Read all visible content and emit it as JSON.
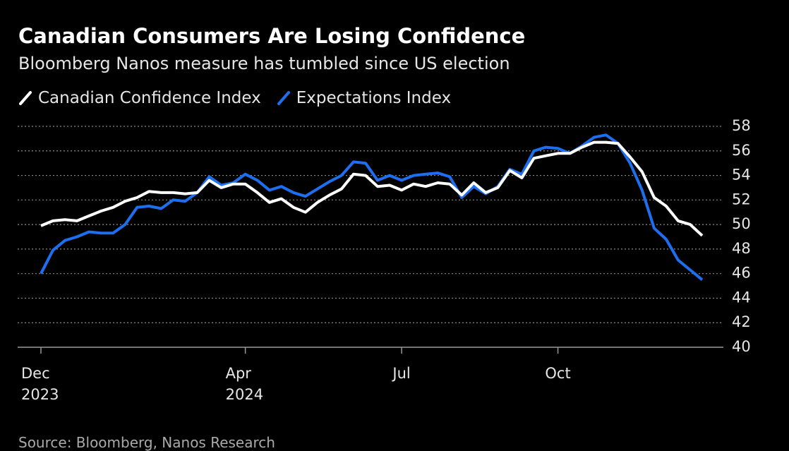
{
  "chart_data": {
    "type": "line",
    "title": "Canadian Consumers Are Losing Confidence",
    "subtitle": "Bloomberg Nanos measure has tumbled since US election",
    "source": "Source: Bloomberg, Nanos Research",
    "categories": [
      "Dec\n2023",
      null,
      null,
      null,
      null,
      null,
      null,
      null,
      null,
      null,
      null,
      null,
      null,
      null,
      null,
      null,
      null,
      "Apr\n2024",
      null,
      null,
      null,
      null,
      null,
      null,
      null,
      null,
      null,
      null,
      null,
      null,
      "Jul",
      null,
      null,
      null,
      null,
      null,
      null,
      null,
      null,
      null,
      null,
      null,
      null,
      "Oct",
      null,
      null,
      null,
      null,
      null,
      null,
      null,
      null,
      null,
      null,
      null,
      null
    ],
    "series": [
      {
        "name": "Canadian Confidence Index",
        "color": "#ffffff",
        "values": [
          49.9,
          50.3,
          50.4,
          50.3,
          50.7,
          51.1,
          51.4,
          51.9,
          52.2,
          52.7,
          52.6,
          52.6,
          52.5,
          52.6,
          53.6,
          53.0,
          53.3,
          53.3,
          52.6,
          51.8,
          52.1,
          51.4,
          51.0,
          51.8,
          52.4,
          52.9,
          54.1,
          54.0,
          53.1,
          53.2,
          52.8,
          53.3,
          53.1,
          53.4,
          53.3,
          52.4,
          53.4,
          52.6,
          53.0,
          54.4,
          53.8,
          55.4,
          55.6,
          55.8,
          55.8,
          56.3,
          56.7,
          56.7,
          56.6,
          55.5,
          54.3,
          52.2,
          51.5,
          50.3,
          50.0,
          49.1
        ]
      },
      {
        "name": "Expectations Index",
        "color": "#1e6ff0",
        "values": [
          46.0,
          47.9,
          48.7,
          49.0,
          49.4,
          49.3,
          49.3,
          50.0,
          51.4,
          51.5,
          51.3,
          52.0,
          51.9,
          52.6,
          53.9,
          53.2,
          53.4,
          54.1,
          53.6,
          52.8,
          53.1,
          52.6,
          52.3,
          52.9,
          53.5,
          54.0,
          55.1,
          55.0,
          53.6,
          54.0,
          53.6,
          54.0,
          54.1,
          54.2,
          53.9,
          52.2,
          53.1,
          52.5,
          53.1,
          54.5,
          54.1,
          56.0,
          56.3,
          56.2,
          55.8,
          56.4,
          57.1,
          57.3,
          56.6,
          55.0,
          52.8,
          49.7,
          48.8,
          47.1,
          46.3,
          45.5
        ]
      }
    ],
    "ylim": [
      40,
      58
    ],
    "yticks": [
      40,
      42,
      44,
      46,
      48,
      50,
      52,
      54,
      56,
      58
    ],
    "grid": true
  }
}
